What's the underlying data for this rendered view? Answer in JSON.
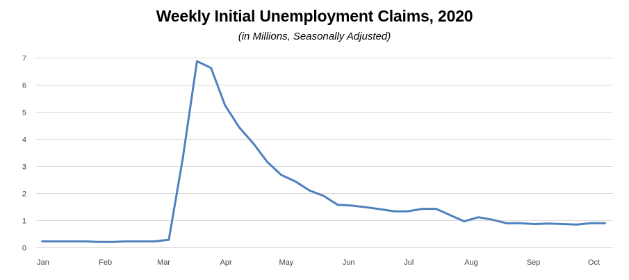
{
  "chart_data": {
    "type": "line",
    "title": "Weekly Initial Unemployment Claims, 2020",
    "subtitle": "(in Millions, Seasonally Adjusted)",
    "xlabel": "",
    "ylabel": "",
    "ylim": [
      0,
      7
    ],
    "yticks": [
      0,
      1,
      2,
      3,
      4,
      5,
      6,
      7
    ],
    "x_tick_labels": [
      "Jan",
      "Feb",
      "Mar",
      "Apr",
      "May",
      "Jun",
      "Jul",
      "Aug",
      "Sep",
      "Oct"
    ],
    "grid": true,
    "legend": "none",
    "line_color": "#4f81bd",
    "grid_color": "#d9d9d9",
    "series": [
      {
        "name": "",
        "x": [
          "2020-01-04",
          "2020-01-11",
          "2020-01-18",
          "2020-01-25",
          "2020-02-01",
          "2020-02-08",
          "2020-02-15",
          "2020-02-22",
          "2020-02-29",
          "2020-03-07",
          "2020-03-14",
          "2020-03-21",
          "2020-03-28",
          "2020-04-04",
          "2020-04-11",
          "2020-04-18",
          "2020-04-25",
          "2020-05-02",
          "2020-05-09",
          "2020-05-16",
          "2020-05-23",
          "2020-05-30",
          "2020-06-06",
          "2020-06-13",
          "2020-06-20",
          "2020-06-27",
          "2020-07-04",
          "2020-07-11",
          "2020-07-18",
          "2020-07-25",
          "2020-08-01",
          "2020-08-08",
          "2020-08-15",
          "2020-08-22",
          "2020-08-29",
          "2020-09-05",
          "2020-09-12",
          "2020-09-19",
          "2020-09-26",
          "2020-10-03",
          "2020-10-10"
        ],
        "values": [
          0.22,
          0.22,
          0.22,
          0.22,
          0.2,
          0.2,
          0.22,
          0.22,
          0.22,
          0.28,
          3.3,
          6.87,
          6.62,
          5.24,
          4.43,
          3.84,
          3.15,
          2.67,
          2.43,
          2.1,
          1.9,
          1.57,
          1.54,
          1.48,
          1.41,
          1.33,
          1.33,
          1.42,
          1.42,
          1.19,
          0.96,
          1.11,
          1.02,
          0.89,
          0.89,
          0.86,
          0.88,
          0.86,
          0.84,
          0.89,
          0.89
        ]
      }
    ]
  }
}
